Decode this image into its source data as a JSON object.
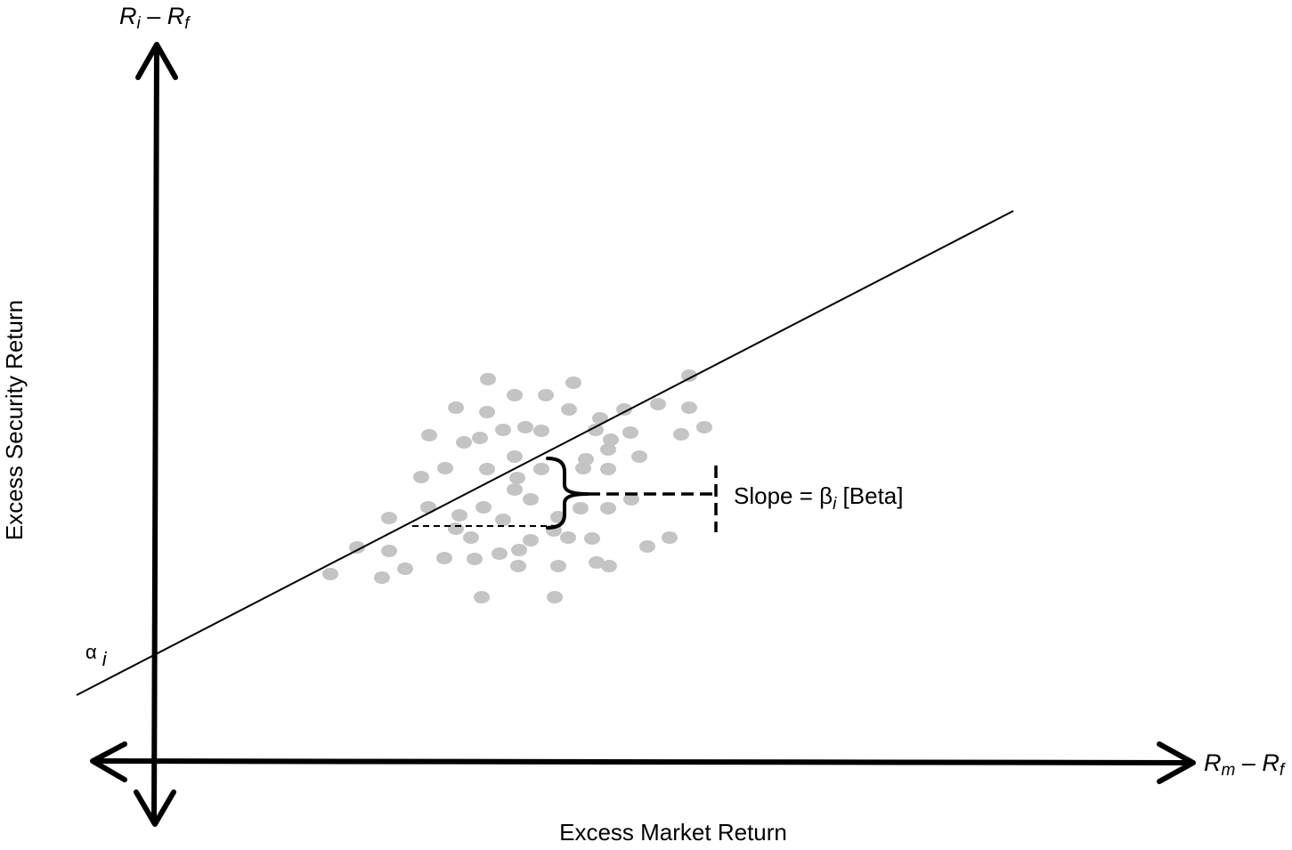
{
  "axis_labels": {
    "y_axis_title": "Excess Security Return",
    "x_axis_title": "Excess Market Return",
    "y_axis_end": {
      "var": "R",
      "sub": "i",
      "minus": " – ",
      "var2": "R",
      "sub2": "f"
    },
    "x_axis_end": {
      "var": "R",
      "sub": "m",
      "minus": " – ",
      "var2": "R",
      "sub2": "f"
    }
  },
  "annotations": {
    "alpha": {
      "symbol": "α",
      "sub": "i"
    },
    "slope": {
      "prefix": "Slope = β",
      "sub": "i",
      "suffix": " [Beta]"
    }
  },
  "colors": {
    "axis": "#000000",
    "line": "#000000",
    "points": "#c4c4c4"
  }
}
